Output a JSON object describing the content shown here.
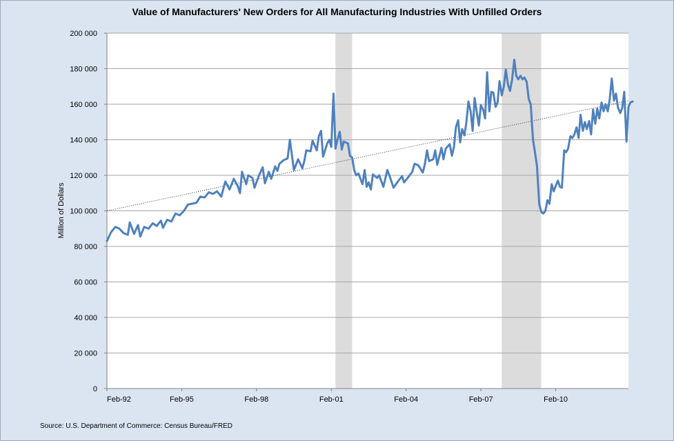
{
  "chart_data": {
    "type": "line",
    "title": "Value of Manufacturers' New Orders for All Manufacturing Industries With Unfilled Orders",
    "xlabel": "",
    "ylabel": "Million of Dollars",
    "ylim": [
      0,
      200000
    ],
    "yticks": [
      0,
      20000,
      40000,
      60000,
      80000,
      100000,
      120000,
      140000,
      160000,
      180000,
      200000
    ],
    "ytick_labels": [
      "0",
      "20 000",
      "40 000",
      "60 000",
      "80 000",
      "100 000",
      "120 000",
      "140 000",
      "160 000",
      "180 000",
      "200 000"
    ],
    "xlim": [
      1992.083,
      2013.0
    ],
    "xticks": [
      {
        "label": "Feb-92",
        "x": 1992.083
      },
      {
        "label": "Feb-95",
        "x": 1995.083
      },
      {
        "label": "Feb-98",
        "x": 1998.083
      },
      {
        "label": "Feb-01",
        "x": 2001.083
      },
      {
        "label": "Feb-04",
        "x": 2004.083
      },
      {
        "label": "Feb-07",
        "x": 2007.083
      },
      {
        "label": "Feb-10",
        "x": 2010.083
      }
    ],
    "grid": true,
    "recessions": [
      {
        "start": 2001.25,
        "end": 2001.917
      },
      {
        "start": 2007.917,
        "end": 2009.5
      }
    ],
    "trendline": {
      "name": "Linear trend",
      "x": [
        1992.083,
        2013.0
      ],
      "y": [
        100000,
        162000
      ]
    },
    "series": [
      {
        "name": "Value of Manufacturers' New Orders",
        "color": "#4f81bd",
        "points": [
          [
            1992.083,
            83000
          ],
          [
            1992.25,
            88000
          ],
          [
            1992.42,
            91000
          ],
          [
            1992.58,
            90000
          ],
          [
            1992.75,
            87500
          ],
          [
            1992.92,
            86500
          ],
          [
            1993.0,
            93500
          ],
          [
            1993.17,
            87000
          ],
          [
            1993.33,
            92000
          ],
          [
            1993.42,
            85500
          ],
          [
            1993.58,
            91000
          ],
          [
            1993.75,
            90000
          ],
          [
            1993.92,
            93000
          ],
          [
            1994.08,
            91500
          ],
          [
            1994.25,
            94500
          ],
          [
            1994.33,
            90500
          ],
          [
            1994.5,
            95000
          ],
          [
            1994.67,
            94000
          ],
          [
            1994.83,
            98500
          ],
          [
            1995.0,
            97500
          ],
          [
            1995.17,
            100000
          ],
          [
            1995.33,
            103500
          ],
          [
            1995.5,
            104000
          ],
          [
            1995.67,
            104500
          ],
          [
            1995.83,
            108000
          ],
          [
            1996.0,
            107500
          ],
          [
            1996.17,
            110500
          ],
          [
            1996.33,
            109500
          ],
          [
            1996.5,
            111000
          ],
          [
            1996.67,
            108000
          ],
          [
            1996.83,
            116500
          ],
          [
            1997.0,
            112000
          ],
          [
            1997.17,
            118000
          ],
          [
            1997.33,
            114000
          ],
          [
            1997.42,
            110000
          ],
          [
            1997.5,
            122000
          ],
          [
            1997.67,
            115000
          ],
          [
            1997.75,
            120000
          ],
          [
            1997.92,
            118500
          ],
          [
            1998.0,
            113000
          ],
          [
            1998.17,
            119500
          ],
          [
            1998.33,
            124500
          ],
          [
            1998.42,
            115500
          ],
          [
            1998.58,
            122000
          ],
          [
            1998.67,
            118000
          ],
          [
            1998.83,
            125000
          ],
          [
            1998.92,
            122500
          ],
          [
            1999.0,
            126500
          ],
          [
            1999.17,
            128500
          ],
          [
            1999.33,
            129500
          ],
          [
            1999.42,
            140000
          ],
          [
            1999.58,
            123000
          ],
          [
            1999.75,
            129000
          ],
          [
            1999.92,
            124000
          ],
          [
            2000.0,
            128000
          ],
          [
            2000.08,
            134000
          ],
          [
            2000.25,
            133500
          ],
          [
            2000.33,
            139500
          ],
          [
            2000.5,
            134000
          ],
          [
            2000.58,
            142000
          ],
          [
            2000.67,
            145000
          ],
          [
            2000.75,
            130500
          ],
          [
            2000.92,
            138000
          ],
          [
            2001.0,
            140000
          ],
          [
            2001.08,
            136000
          ],
          [
            2001.17,
            166000
          ],
          [
            2001.25,
            135000
          ],
          [
            2001.33,
            140000
          ],
          [
            2001.42,
            144500
          ],
          [
            2001.5,
            134500
          ],
          [
            2001.58,
            139000
          ],
          [
            2001.75,
            138000
          ],
          [
            2001.83,
            131000
          ],
          [
            2001.92,
            130000
          ],
          [
            2002.0,
            123000
          ],
          [
            2002.08,
            120000
          ],
          [
            2002.17,
            121000
          ],
          [
            2002.33,
            115000
          ],
          [
            2002.42,
            123000
          ],
          [
            2002.5,
            113500
          ],
          [
            2002.58,
            116000
          ],
          [
            2002.67,
            112000
          ],
          [
            2002.75,
            120500
          ],
          [
            2002.92,
            118500
          ],
          [
            2003.0,
            120000
          ],
          [
            2003.17,
            113500
          ],
          [
            2003.33,
            123000
          ],
          [
            2003.42,
            119500
          ],
          [
            2003.58,
            113000
          ],
          [
            2003.75,
            116500
          ],
          [
            2003.92,
            119500
          ],
          [
            2004.0,
            116000
          ],
          [
            2004.17,
            119000
          ],
          [
            2004.33,
            122000
          ],
          [
            2004.42,
            126500
          ],
          [
            2004.58,
            125500
          ],
          [
            2004.75,
            121500
          ],
          [
            2004.83,
            126000
          ],
          [
            2004.92,
            134000
          ],
          [
            2005.0,
            128000
          ],
          [
            2005.17,
            129000
          ],
          [
            2005.25,
            134000
          ],
          [
            2005.33,
            126000
          ],
          [
            2005.5,
            135500
          ],
          [
            2005.58,
            129000
          ],
          [
            2005.67,
            135000
          ],
          [
            2005.83,
            137500
          ],
          [
            2005.92,
            131000
          ],
          [
            2006.0,
            136000
          ],
          [
            2006.08,
            147000
          ],
          [
            2006.17,
            151000
          ],
          [
            2006.25,
            138500
          ],
          [
            2006.33,
            146000
          ],
          [
            2006.42,
            142500
          ],
          [
            2006.5,
            150000
          ],
          [
            2006.58,
            161500
          ],
          [
            2006.67,
            156000
          ],
          [
            2006.75,
            145000
          ],
          [
            2006.83,
            163500
          ],
          [
            2006.92,
            155000
          ],
          [
            2007.0,
            148000
          ],
          [
            2007.08,
            159500
          ],
          [
            2007.17,
            157000
          ],
          [
            2007.25,
            152000
          ],
          [
            2007.33,
            178000
          ],
          [
            2007.42,
            156000
          ],
          [
            2007.5,
            167000
          ],
          [
            2007.58,
            166500
          ],
          [
            2007.67,
            158500
          ],
          [
            2007.75,
            161000
          ],
          [
            2007.83,
            173000
          ],
          [
            2007.92,
            165000
          ],
          [
            2008.0,
            170000
          ],
          [
            2008.08,
            179500
          ],
          [
            2008.17,
            171000
          ],
          [
            2008.25,
            167500
          ],
          [
            2008.33,
            173500
          ],
          [
            2008.42,
            185000
          ],
          [
            2008.5,
            176000
          ],
          [
            2008.58,
            174000
          ],
          [
            2008.67,
            176000
          ],
          [
            2008.75,
            174000
          ],
          [
            2008.83,
            175000
          ],
          [
            2008.92,
            172500
          ],
          [
            2009.0,
            163000
          ],
          [
            2009.08,
            160000
          ],
          [
            2009.17,
            140000
          ],
          [
            2009.25,
            133000
          ],
          [
            2009.33,
            125000
          ],
          [
            2009.42,
            104000
          ],
          [
            2009.5,
            99500
          ],
          [
            2009.58,
            98500
          ],
          [
            2009.67,
            100000
          ],
          [
            2009.75,
            106000
          ],
          [
            2009.83,
            104000
          ],
          [
            2009.92,
            115000
          ],
          [
            2010.0,
            111000
          ],
          [
            2010.08,
            114000
          ],
          [
            2010.17,
            117000
          ],
          [
            2010.25,
            113500
          ],
          [
            2010.33,
            113000
          ],
          [
            2010.42,
            134000
          ],
          [
            2010.5,
            133000
          ],
          [
            2010.58,
            135000
          ],
          [
            2010.67,
            142000
          ],
          [
            2010.75,
            141000
          ],
          [
            2010.83,
            143000
          ],
          [
            2010.92,
            147000
          ],
          [
            2011.0,
            141000
          ],
          [
            2011.08,
            154000
          ],
          [
            2011.17,
            145000
          ],
          [
            2011.25,
            150000
          ],
          [
            2011.33,
            146000
          ],
          [
            2011.42,
            150500
          ],
          [
            2011.5,
            143000
          ],
          [
            2011.58,
            157000
          ],
          [
            2011.67,
            149000
          ],
          [
            2011.75,
            157500
          ],
          [
            2011.83,
            152000
          ],
          [
            2011.92,
            161000
          ],
          [
            2012.0,
            156000
          ],
          [
            2012.08,
            160000
          ],
          [
            2012.17,
            156000
          ],
          [
            2012.25,
            163000
          ],
          [
            2012.33,
            174500
          ],
          [
            2012.42,
            162000
          ],
          [
            2012.5,
            166000
          ],
          [
            2012.58,
            158000
          ],
          [
            2012.67,
            155000
          ],
          [
            2012.75,
            158000
          ],
          [
            2012.83,
            167000
          ],
          [
            2012.92,
            139000
          ],
          [
            2013.0,
            158500
          ],
          [
            2013.08,
            161000
          ],
          [
            2013.17,
            161500
          ]
        ]
      }
    ],
    "source": "Source: U.S. Department of Commerce: Census Bureau/FRED"
  }
}
